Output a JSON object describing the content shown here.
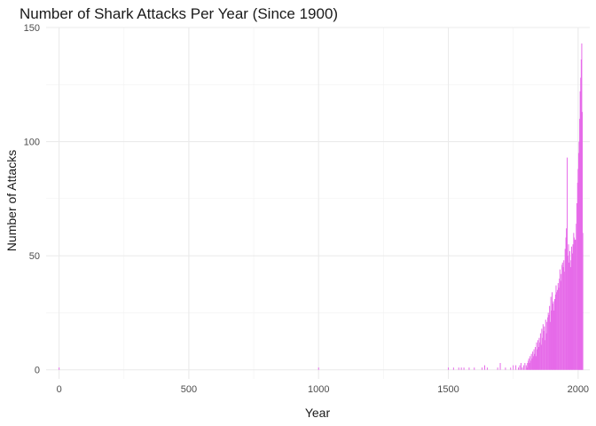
{
  "chart_data": {
    "type": "bar",
    "title": "Number of Shark Attacks Per Year (Since 1900)",
    "xlabel": "Year",
    "ylabel": "Number of Attacks",
    "xlim": [
      -50,
      2045
    ],
    "ylim": [
      -4,
      150
    ],
    "x_ticks": [
      0,
      500,
      1000,
      1500,
      2000
    ],
    "y_ticks": [
      0,
      50,
      100,
      150
    ],
    "grid": true,
    "bar_color": "#e66be9",
    "x": [
      0,
      1000,
      1500,
      1520,
      1540,
      1550,
      1560,
      1580,
      1600,
      1630,
      1640,
      1650,
      1690,
      1700,
      1720,
      1740,
      1750,
      1760,
      1770,
      1775,
      1780,
      1785,
      1790,
      1795,
      1800,
      1803,
      1805,
      1808,
      1810,
      1813,
      1815,
      1818,
      1820,
      1823,
      1825,
      1828,
      1830,
      1833,
      1835,
      1838,
      1840,
      1843,
      1845,
      1848,
      1850,
      1853,
      1855,
      1858,
      1860,
      1863,
      1865,
      1868,
      1870,
      1873,
      1875,
      1878,
      1880,
      1883,
      1885,
      1888,
      1890,
      1893,
      1895,
      1898,
      1900,
      1903,
      1905,
      1908,
      1910,
      1913,
      1915,
      1918,
      1920,
      1923,
      1925,
      1928,
      1930,
      1933,
      1935,
      1938,
      1940,
      1943,
      1945,
      1948,
      1950,
      1953,
      1955,
      1958,
      1960,
      1963,
      1965,
      1968,
      1970,
      1973,
      1975,
      1978,
      1980,
      1983,
      1985,
      1988,
      1990,
      1993,
      1995,
      1998,
      2000,
      2002,
      2004,
      2006,
      2008,
      2010,
      2012,
      2014,
      2016,
      2018
    ],
    "values": [
      1,
      1,
      1,
      1,
      1,
      1,
      1,
      1,
      1,
      1,
      2,
      1,
      1,
      3,
      1,
      1,
      2,
      2,
      1,
      2,
      3,
      1,
      2,
      3,
      2,
      1,
      3,
      4,
      5,
      3,
      6,
      4,
      7,
      5,
      8,
      6,
      9,
      7,
      10,
      6,
      12,
      9,
      13,
      10,
      14,
      12,
      16,
      11,
      18,
      14,
      20,
      17,
      19,
      13,
      22,
      16,
      21,
      23,
      25,
      24,
      28,
      21,
      32,
      26,
      34,
      29,
      30,
      26,
      31,
      33,
      37,
      34,
      35,
      38,
      36,
      40,
      44,
      39,
      42,
      46,
      47,
      45,
      48,
      43,
      53,
      58,
      62,
      93,
      50,
      55,
      47,
      52,
      45,
      48,
      54,
      51,
      55,
      60,
      58,
      57,
      57,
      64,
      73,
      82,
      88,
      95,
      100,
      110,
      122,
      128,
      136,
      143,
      113,
      60
    ]
  }
}
